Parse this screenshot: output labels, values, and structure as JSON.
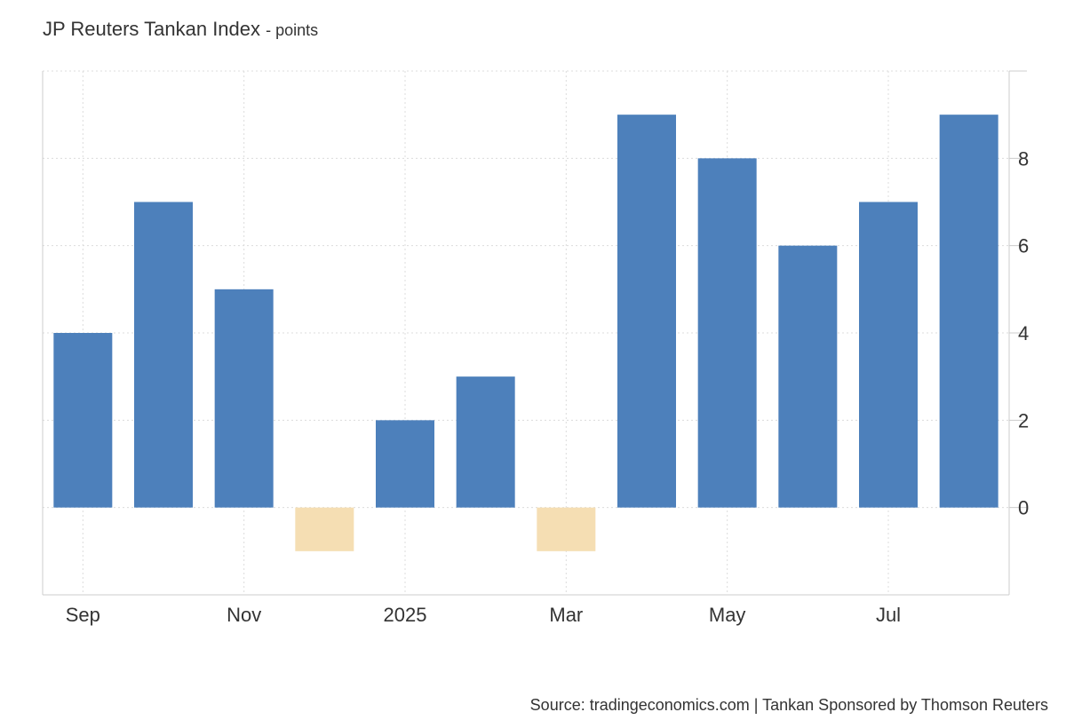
{
  "chart_data": {
    "type": "bar",
    "title": "JP Reuters Tankan Index",
    "unit": "points",
    "source": "Source: tradingeconomics.com | Tankan Sponsored by Thomson Reuters",
    "categories": [
      "2024-09",
      "2024-10",
      "2024-11",
      "2024-12",
      "2025-01",
      "2025-02",
      "2025-03",
      "2025-04",
      "2025-05",
      "2025-06",
      "2025-07",
      "2025-08"
    ],
    "values": [
      4,
      7,
      5,
      -1,
      2,
      3,
      -1,
      9,
      8,
      6,
      7,
      9
    ],
    "x_tick_labels": [
      {
        "label": "Sep",
        "index": 0
      },
      {
        "label": "Nov",
        "index": 2
      },
      {
        "label": "2025",
        "index": 4
      },
      {
        "label": "Mar",
        "index": 6
      },
      {
        "label": "May",
        "index": 8
      },
      {
        "label": "Jul",
        "index": 10
      }
    ],
    "y_ticks": [
      0,
      2,
      4,
      6,
      8
    ],
    "ylim": [
      -2,
      10
    ],
    "y_axis_side": "right",
    "grid": true,
    "colors": {
      "positive": "#4d80bb",
      "negative": "#f5deb3",
      "grid": "#dcdcdc",
      "axis": "#cccccc"
    }
  }
}
